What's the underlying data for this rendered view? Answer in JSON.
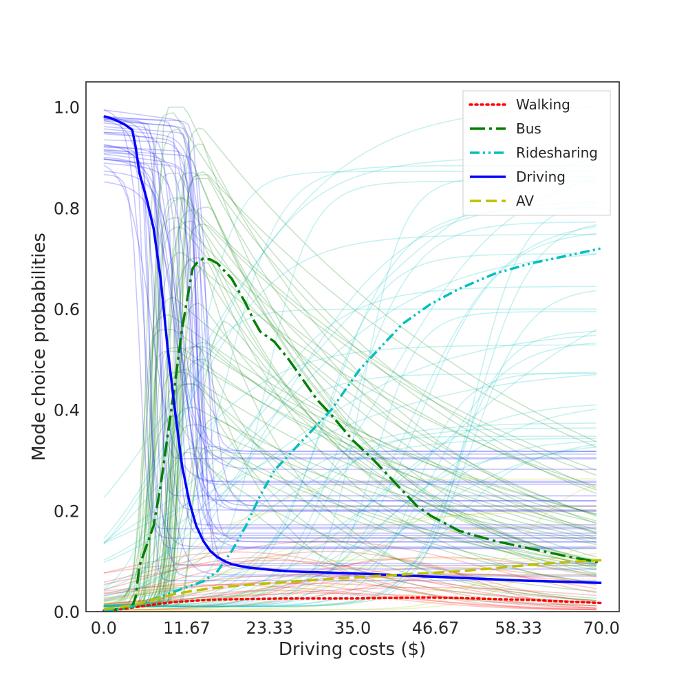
{
  "chart_data": {
    "type": "line",
    "title": "",
    "xlabel": "Driving costs ($)",
    "ylabel": "Mode choice probabilities",
    "xlim": [
      -2.5,
      72.5
    ],
    "ylim": [
      0.0,
      1.05
    ],
    "xticks": [
      0.0,
      11.67,
      23.33,
      35.0,
      46.67,
      58.33,
      70.0
    ],
    "xtick_labels": [
      "0.0",
      "11.67",
      "23.33",
      "35.0",
      "46.67",
      "58.33",
      "70.0"
    ],
    "yticks": [
      0.0,
      0.2,
      0.4,
      0.6,
      0.8,
      1.0
    ],
    "ytick_labels": [
      "0.0",
      "0.2",
      "0.4",
      "0.6",
      "0.8",
      "1.0"
    ],
    "grid": false,
    "legend_position": "top-right",
    "background_lines": {
      "note_visible": false,
      "colors": {
        "Walking": "#ff0000",
        "Bus": "#008000",
        "Ridesharing": "#00bfbf",
        "Driving": "#0000ff",
        "AV": "#bfbf00"
      },
      "counts": {
        "Walking": 18,
        "Bus": 45,
        "Ridesharing": 40,
        "Driving": 35,
        "AV": 12
      },
      "opacity": 0.22
    },
    "series": [
      {
        "name": "Walking",
        "color": "#ff0000",
        "style": "dotted",
        "x": [
          0,
          2,
          4,
          6,
          8,
          10,
          12,
          16,
          20,
          25,
          30,
          35,
          40,
          45,
          50,
          55,
          60,
          65,
          70
        ],
        "y": [
          0.002,
          0.004,
          0.008,
          0.012,
          0.016,
          0.019,
          0.021,
          0.024,
          0.025,
          0.026,
          0.026,
          0.026,
          0.027,
          0.028,
          0.027,
          0.025,
          0.023,
          0.02,
          0.017
        ]
      },
      {
        "name": "Bus",
        "color": "#008000",
        "style": "dashdot-long",
        "x": [
          0,
          2,
          4,
          4.5,
          5,
          6,
          7,
          8,
          9,
          10,
          11,
          12,
          12.5,
          13,
          14,
          15,
          16,
          18,
          20,
          21,
          22,
          23,
          24,
          26,
          28,
          30,
          32,
          35,
          38,
          40,
          42,
          44,
          46,
          48,
          50,
          55,
          60,
          65,
          70
        ],
        "y": [
          0.003,
          0.005,
          0.01,
          0.03,
          0.09,
          0.13,
          0.17,
          0.25,
          0.35,
          0.45,
          0.56,
          0.64,
          0.68,
          0.69,
          0.7,
          0.698,
          0.69,
          0.66,
          0.61,
          0.58,
          0.555,
          0.545,
          0.535,
          0.5,
          0.46,
          0.42,
          0.39,
          0.34,
          0.3,
          0.27,
          0.24,
          0.21,
          0.19,
          0.175,
          0.16,
          0.14,
          0.125,
          0.11,
          0.097
        ]
      },
      {
        "name": "Ridesharing",
        "color": "#00bfbf",
        "style": "dashdotdot",
        "x": [
          0,
          2,
          4,
          6,
          8,
          10,
          12,
          14,
          16,
          18,
          20,
          22,
          24,
          26,
          28,
          30,
          32,
          34,
          36,
          38,
          40,
          42,
          44,
          46,
          50,
          55,
          60,
          65,
          70
        ],
        "y": [
          0.002,
          0.004,
          0.01,
          0.02,
          0.03,
          0.04,
          0.05,
          0.06,
          0.08,
          0.12,
          0.17,
          0.23,
          0.28,
          0.31,
          0.34,
          0.37,
          0.4,
          0.44,
          0.48,
          0.51,
          0.54,
          0.57,
          0.59,
          0.61,
          0.64,
          0.67,
          0.69,
          0.705,
          0.72
        ]
      },
      {
        "name": "Driving",
        "color": "#0000ff",
        "style": "solid",
        "x": [
          0,
          1,
          2,
          3,
          4,
          4.5,
          5,
          6,
          7,
          8,
          9,
          10,
          11,
          12,
          13,
          14,
          15,
          16,
          17,
          18,
          20,
          22,
          24,
          26,
          28,
          30,
          35,
          40,
          45,
          50,
          55,
          60,
          65,
          70
        ],
        "y": [
          0.982,
          0.978,
          0.972,
          0.965,
          0.955,
          0.92,
          0.87,
          0.82,
          0.76,
          0.66,
          0.52,
          0.4,
          0.29,
          0.22,
          0.17,
          0.14,
          0.12,
          0.108,
          0.1,
          0.094,
          0.088,
          0.085,
          0.082,
          0.08,
          0.079,
          0.078,
          0.076,
          0.073,
          0.07,
          0.067,
          0.064,
          0.061,
          0.059,
          0.057
        ]
      },
      {
        "name": "AV",
        "color": "#bfbf00",
        "style": "dashed",
        "x": [
          0,
          2,
          4,
          6,
          8,
          10,
          12,
          15,
          20,
          25,
          30,
          35,
          40,
          45,
          50,
          55,
          60,
          65,
          70
        ],
        "y": [
          0.005,
          0.008,
          0.012,
          0.02,
          0.028,
          0.035,
          0.04,
          0.046,
          0.053,
          0.058,
          0.063,
          0.068,
          0.072,
          0.076,
          0.08,
          0.086,
          0.093,
          0.098,
          0.102
        ]
      }
    ]
  }
}
